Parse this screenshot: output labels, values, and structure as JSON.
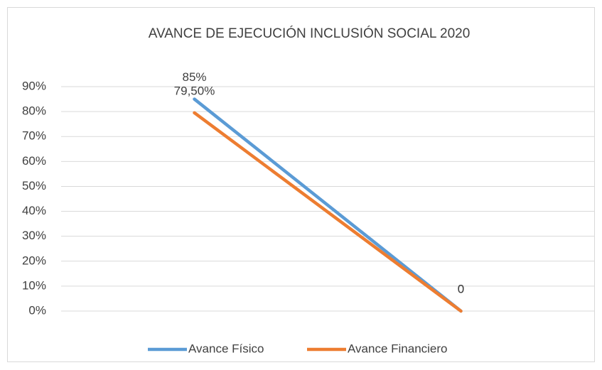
{
  "chart_data": {
    "type": "line",
    "title": "AVANCE DE EJECUCIÓN INCLUSIÓN SOCIAL 2020",
    "categories": [
      null,
      null
    ],
    "series": [
      {
        "name": "Avance Físico",
        "color": "#5b9bd5",
        "values": [
          85,
          0
        ],
        "value_labels": [
          "85%",
          "0"
        ]
      },
      {
        "name": "Avance Financiero",
        "color": "#ed7d31",
        "values": [
          79.5,
          0
        ],
        "value_labels": [
          "79,50%",
          "0"
        ]
      }
    ],
    "ylim": [
      0,
      90
    ],
    "yticks": [
      {
        "value": 0,
        "label": "0%"
      },
      {
        "value": 10,
        "label": "10%"
      },
      {
        "value": 20,
        "label": "20%"
      },
      {
        "value": 30,
        "label": "30%"
      },
      {
        "value": 40,
        "label": "40%"
      },
      {
        "value": 50,
        "label": "50%"
      },
      {
        "value": 60,
        "label": "60%"
      },
      {
        "value": 70,
        "label": "70%"
      },
      {
        "value": 80,
        "label": "80%"
      },
      {
        "value": 90,
        "label": "90%"
      }
    ],
    "grid": true,
    "legend": "bottom"
  }
}
